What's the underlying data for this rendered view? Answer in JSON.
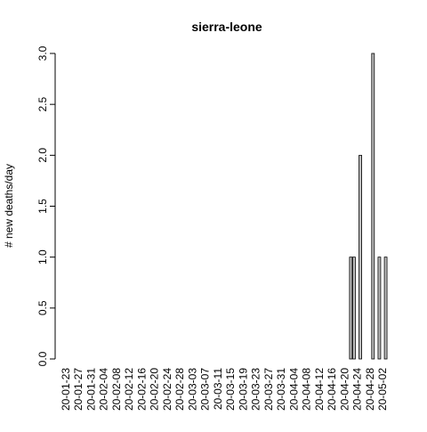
{
  "chart_data": {
    "type": "bar",
    "title": "sierra-leone",
    "y_label": "# new deaths/day",
    "categories": [
      "20-01-23",
      null,
      null,
      null,
      "20-01-27",
      null,
      null,
      null,
      "20-01-31",
      null,
      null,
      null,
      "20-02-04",
      null,
      null,
      null,
      "20-02-08",
      null,
      null,
      null,
      "20-02-12",
      null,
      null,
      null,
      "20-02-16",
      null,
      null,
      null,
      "20-02-20",
      null,
      null,
      null,
      "20-02-24",
      null,
      null,
      null,
      "20-02-28",
      null,
      null,
      null,
      "20-03-03",
      null,
      null,
      null,
      "20-03-07",
      null,
      null,
      null,
      "20-03-11",
      null,
      null,
      null,
      "20-03-15",
      null,
      null,
      null,
      "20-03-19",
      null,
      null,
      null,
      "20-03-23",
      null,
      null,
      null,
      "20-03-27",
      null,
      null,
      null,
      "20-03-31",
      null,
      null,
      null,
      "20-04-04",
      null,
      null,
      null,
      "20-04-08",
      null,
      null,
      null,
      "20-04-12",
      null,
      null,
      null,
      "20-04-16",
      null,
      null,
      null,
      "20-04-20",
      null,
      null,
      null,
      "20-04-24",
      null,
      null,
      null,
      "20-04-28",
      null,
      null,
      null,
      "20-05-02",
      null
    ],
    "values": [
      0,
      0,
      0,
      0,
      0,
      0,
      0,
      0,
      0,
      0,
      0,
      0,
      0,
      0,
      0,
      0,
      0,
      0,
      0,
      0,
      0,
      0,
      0,
      0,
      0,
      0,
      0,
      0,
      0,
      0,
      0,
      0,
      0,
      0,
      0,
      0,
      0,
      0,
      0,
      0,
      0,
      0,
      0,
      0,
      0,
      0,
      0,
      0,
      0,
      0,
      0,
      0,
      0,
      0,
      0,
      0,
      0,
      0,
      0,
      0,
      0,
      0,
      0,
      0,
      0,
      0,
      0,
      0,
      0,
      0,
      0,
      0,
      0,
      0,
      0,
      0,
      0,
      0,
      0,
      0,
      0,
      0,
      0,
      0,
      0,
      0,
      0,
      0,
      0,
      0,
      1,
      1,
      0,
      2,
      0,
      0,
      0,
      3,
      0,
      1,
      0,
      1
    ],
    "color": "#bebebe",
    "ylim": [
      0,
      3
    ],
    "yticks": [
      {
        "value": 0,
        "label": "0.0"
      },
      {
        "value": 0.5,
        "label": "0.5"
      },
      {
        "value": 1,
        "label": "1.0"
      },
      {
        "value": 1.5,
        "label": "1.5"
      },
      {
        "value": 2,
        "label": "2.0"
      },
      {
        "value": 2.5,
        "label": "2.5"
      },
      {
        "value": 3,
        "label": "3.0"
      }
    ]
  }
}
